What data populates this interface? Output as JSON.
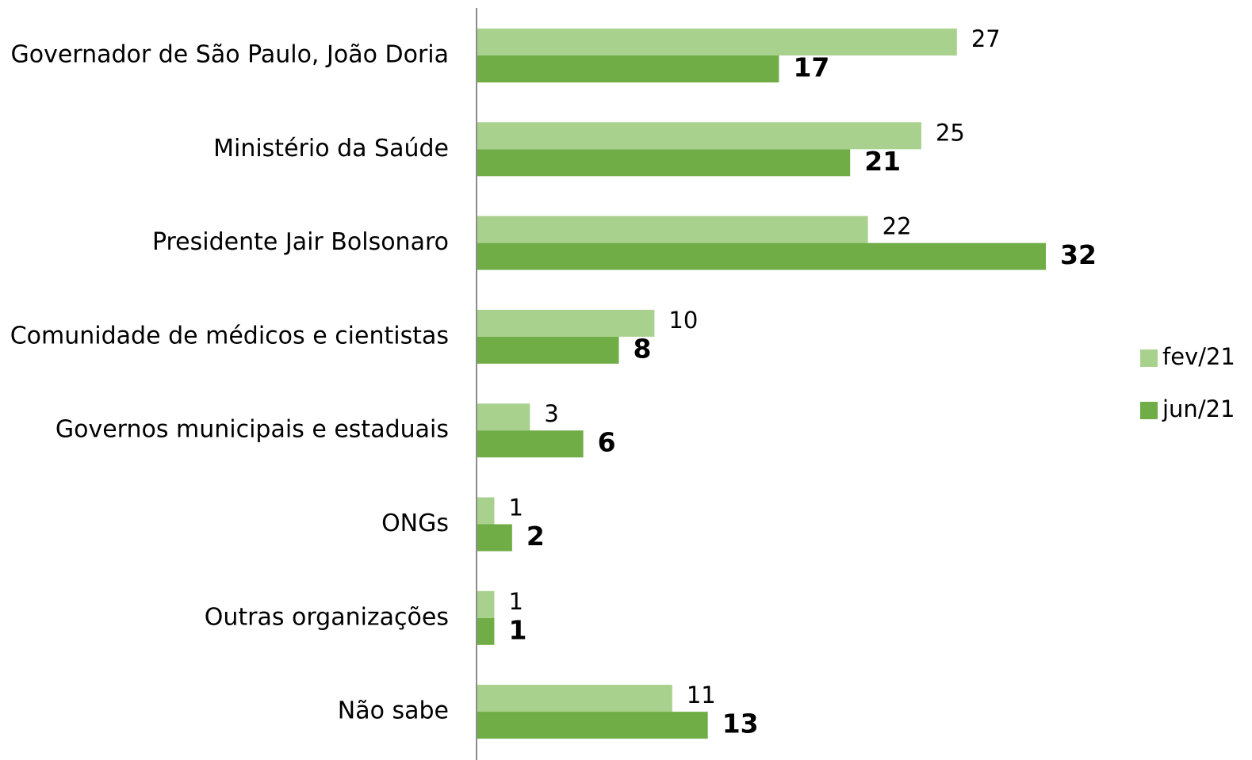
{
  "chart_data": {
    "type": "bar",
    "orientation": "horizontal",
    "categories": [
      "Governador de São Paulo, João Doria",
      "Ministério da Saúde",
      "Presidente Jair Bolsonaro",
      "Comunidade de médicos e cientistas",
      "Governos municipais e estaduais",
      "ONGs",
      "Outras organizações",
      "Não sabe"
    ],
    "series": [
      {
        "name": "fev/21",
        "color": "#a9d18e",
        "values": [
          27,
          25,
          22,
          10,
          3,
          1,
          1,
          11
        ]
      },
      {
        "name": "jun/21",
        "color": "#70ad47",
        "values": [
          17,
          21,
          32,
          8,
          6,
          2,
          1,
          13
        ]
      }
    ],
    "xlim": [
      0,
      32
    ],
    "legend": "right"
  }
}
